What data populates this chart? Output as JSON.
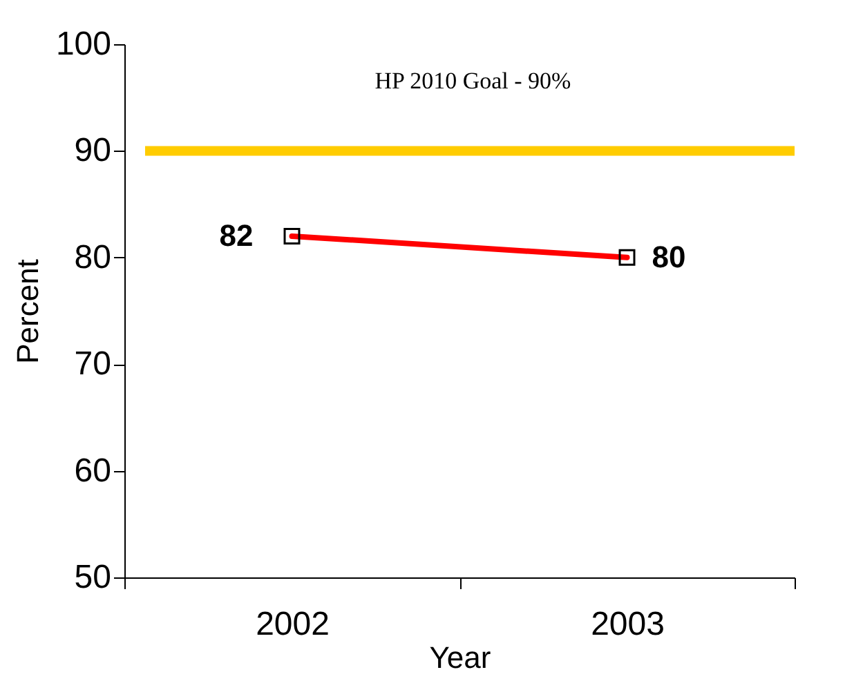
{
  "chart_data": {
    "type": "line",
    "categories": [
      "2002",
      "2003"
    ],
    "series": [
      {
        "color": "#ff0000",
        "values": [
          82,
          80
        ]
      }
    ],
    "xlabel": "Year",
    "ylabel": "Percent",
    "ylim": [
      50,
      100
    ],
    "yticks": [
      50,
      60,
      70,
      80,
      90,
      100
    ],
    "ref_lines": [
      {
        "axis": "y",
        "value": 90,
        "label": "HP 2010 Goal - 90%",
        "color": "#ffcc00"
      }
    ],
    "marker": "square",
    "data_labels": true,
    "grid": false
  }
}
